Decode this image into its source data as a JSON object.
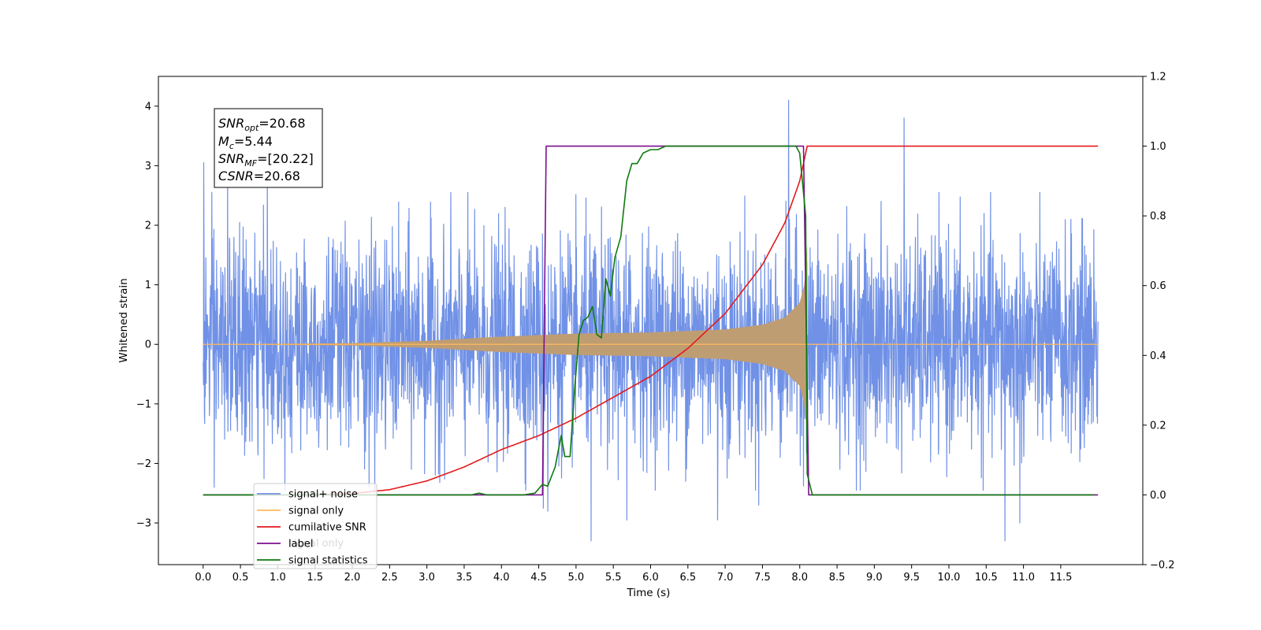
{
  "chart_data": {
    "type": "line",
    "xlabel": "Time (s)",
    "ylabel": "Whitened strain",
    "xlim": [
      -0.6,
      12.6
    ],
    "ylim": [
      -3.7,
      4.5
    ],
    "y2lim": [
      -0.2,
      1.2
    ],
    "x_ticks": [
      "0.0",
      "0.5",
      "1.0",
      "1.5",
      "2.0",
      "2.5",
      "3.0",
      "3.5",
      "4.0",
      "4.5",
      "5.0",
      "5.5",
      "6.0",
      "6.5",
      "7.0",
      "7.5",
      "8.0",
      "8.5",
      "9.0",
      "9.5",
      "10.0",
      "10.5",
      "11.0",
      "11.5"
    ],
    "y_ticks": [
      "−3",
      "−2",
      "−1",
      "0",
      "1",
      "2",
      "3",
      "4"
    ],
    "y2_ticks": [
      "−0.2",
      "0.0",
      "0.2",
      "0.4",
      "0.6",
      "0.8",
      "1.0",
      "1.2"
    ],
    "annotation": [
      {
        "base": "SNR",
        "sub": "opt",
        "value": "=20.68"
      },
      {
        "base": "M",
        "sub": "c",
        "value": "=5.44"
      },
      {
        "base": "SNR",
        "sub": "MF",
        "value": "=[20.22]"
      },
      {
        "base": "CSNR",
        "sub": "",
        "value": "=20.68"
      }
    ],
    "legend": {
      "placement": "lower-left",
      "entries": [
        {
          "label": "signal+ noise",
          "color": "#7091e6"
        },
        {
          "label": "signal only",
          "color": "#ffb85c"
        },
        {
          "label": "cumilative SNR",
          "color": "#e31a1c"
        },
        {
          "label": "label",
          "color": "#7b0f8f"
        },
        {
          "label": "signal statistics",
          "color": "#0f7a0f"
        }
      ],
      "hidden_overlap_text": "signal only"
    },
    "series": [
      {
        "name": "signal+ noise",
        "axis": "left",
        "style": "noise",
        "x_range": [
          0.0,
          12.0
        ],
        "sigma": 0.88,
        "spikes": [
          [
            0.01,
            3.05
          ],
          [
            0.33,
            2.9
          ],
          [
            0.86,
            2.85
          ],
          [
            7.85,
            4.1
          ],
          [
            9.4,
            3.8
          ],
          [
            10.75,
            -3.3
          ],
          [
            10.95,
            -3.0
          ],
          [
            5.2,
            -3.3
          ],
          [
            5.68,
            -2.95
          ],
          [
            6.9,
            -2.95
          ],
          [
            7.45,
            -2.7
          ],
          [
            4.56,
            -2.75
          ],
          [
            4.62,
            -2.8
          ],
          [
            2.3,
            -2.5
          ],
          [
            0.15,
            -2.4
          ]
        ]
      },
      {
        "name": "signal only",
        "axis": "left",
        "style": "chirp",
        "x_range": [
          0.0,
          8.1
        ],
        "envelope": [
          [
            0.0,
            0.0
          ],
          [
            2.0,
            0.02
          ],
          [
            3.0,
            0.06
          ],
          [
            4.0,
            0.13
          ],
          [
            5.0,
            0.18
          ],
          [
            6.0,
            0.2
          ],
          [
            7.0,
            0.25
          ],
          [
            7.5,
            0.33
          ],
          [
            7.8,
            0.45
          ],
          [
            8.0,
            0.7
          ],
          [
            8.07,
            1.05
          ],
          [
            8.1,
            1.7
          ]
        ],
        "color": "#ffb85c"
      },
      {
        "name": "cumilative SNR",
        "axis": "right",
        "points": [
          [
            1.1,
            0.0
          ],
          [
            1.5,
            0.001
          ],
          [
            2.0,
            0.004
          ],
          [
            2.5,
            0.015
          ],
          [
            3.0,
            0.04
          ],
          [
            3.5,
            0.08
          ],
          [
            4.0,
            0.13
          ],
          [
            4.5,
            0.17
          ],
          [
            5.0,
            0.22
          ],
          [
            5.5,
            0.28
          ],
          [
            6.0,
            0.34
          ],
          [
            6.5,
            0.42
          ],
          [
            7.0,
            0.52
          ],
          [
            7.5,
            0.66
          ],
          [
            7.8,
            0.78
          ],
          [
            8.0,
            0.9
          ],
          [
            8.08,
            0.98
          ],
          [
            8.1,
            1.0
          ],
          [
            11.0,
            1.0
          ],
          [
            12.0,
            1.0
          ]
        ],
        "color": "#e31a1c"
      },
      {
        "name": "label",
        "axis": "right",
        "points": [
          [
            0.0,
            0.0
          ],
          [
            4.55,
            0.0
          ],
          [
            4.6,
            1.0
          ],
          [
            8.05,
            1.0
          ],
          [
            8.12,
            0.0
          ],
          [
            12.0,
            0.0
          ]
        ],
        "color": "#7b0f8f"
      },
      {
        "name": "signal statistics",
        "axis": "right",
        "points": [
          [
            0.0,
            0.0
          ],
          [
            3.6,
            0.0
          ],
          [
            3.7,
            0.005
          ],
          [
            3.8,
            0.0
          ],
          [
            4.3,
            0.0
          ],
          [
            4.45,
            0.005
          ],
          [
            4.55,
            0.03
          ],
          [
            4.62,
            0.025
          ],
          [
            4.72,
            0.08
          ],
          [
            4.8,
            0.17
          ],
          [
            4.85,
            0.11
          ],
          [
            4.92,
            0.11
          ],
          [
            4.98,
            0.3
          ],
          [
            5.04,
            0.46
          ],
          [
            5.1,
            0.5
          ],
          [
            5.16,
            0.51
          ],
          [
            5.22,
            0.54
          ],
          [
            5.28,
            0.46
          ],
          [
            5.34,
            0.45
          ],
          [
            5.4,
            0.62
          ],
          [
            5.46,
            0.57
          ],
          [
            5.52,
            0.68
          ],
          [
            5.6,
            0.74
          ],
          [
            5.68,
            0.9
          ],
          [
            5.75,
            0.95
          ],
          [
            5.82,
            0.95
          ],
          [
            5.9,
            0.98
          ],
          [
            6.0,
            0.99
          ],
          [
            6.1,
            0.99
          ],
          [
            6.2,
            1.0
          ],
          [
            7.95,
            1.0
          ],
          [
            8.0,
            0.98
          ],
          [
            8.08,
            0.8
          ],
          [
            8.1,
            0.06
          ],
          [
            8.17,
            0.0
          ],
          [
            11.95,
            0.0
          ]
        ],
        "color": "#0f7a0f"
      }
    ]
  }
}
